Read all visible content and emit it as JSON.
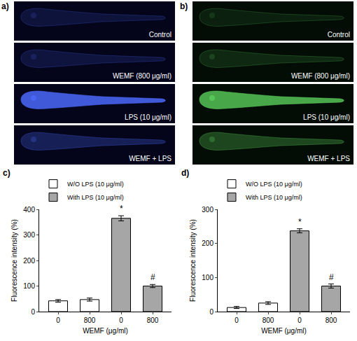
{
  "image_panels": [
    {
      "label": "a)",
      "color": "#4d6bff",
      "rows": [
        "Control",
        "WEMF (800 μg/ml)",
        "LPS (10 μg/ml)",
        "WEMF + LPS"
      ]
    },
    {
      "label": "b)",
      "color": "#62e062",
      "rows": [
        "Control",
        "WEMF (800 μg/ml)",
        "LPS (10 μg/ml)",
        "WEMF + LPS"
      ]
    }
  ],
  "chart_data": [
    {
      "type": "bar",
      "panel_label": "c)",
      "x_label": "WEMF (μg/ml)",
      "y_label": "Fluorescence intensity (%)",
      "categories": [
        "0",
        "800",
        "0",
        "800"
      ],
      "series": [
        {
          "name": "W/O LPS (10 μg/ml)",
          "color": "#ffffff",
          "values": [
            42,
            47,
            null,
            null
          ],
          "errors": [
            5,
            6,
            null,
            null
          ]
        },
        {
          "name": "With LPS (10 μg/ml)",
          "color": "#a6a6a6",
          "values": [
            null,
            null,
            365,
            100
          ],
          "errors": [
            null,
            null,
            10,
            6
          ]
        }
      ],
      "annotations": [
        {
          "text": "*",
          "index": 2
        },
        {
          "text": "#",
          "index": 3
        }
      ],
      "ylim": [
        0,
        400
      ],
      "yticks": [
        0,
        100,
        200,
        300,
        400
      ],
      "legend": "top"
    },
    {
      "type": "bar",
      "panel_label": "d)",
      "x_label": "WEMF (μg/ml)",
      "y_label": "Fluorescence intensity (%)",
      "categories": [
        "0",
        "800",
        "0",
        "800"
      ],
      "series": [
        {
          "name": "W/O LPS (10 μg/ml)",
          "color": "#ffffff",
          "values": [
            12,
            25,
            null,
            null
          ],
          "errors": [
            3,
            4,
            null,
            null
          ]
        },
        {
          "name": "With LPS (10 μg/ml)",
          "color": "#a6a6a6",
          "values": [
            null,
            null,
            237,
            75
          ],
          "errors": [
            null,
            null,
            6,
            6
          ]
        }
      ],
      "annotations": [
        {
          "text": "*",
          "index": 2
        },
        {
          "text": "#",
          "index": 3
        }
      ],
      "ylim": [
        0,
        300
      ],
      "yticks": [
        0,
        100,
        200,
        300
      ],
      "legend": "top"
    }
  ]
}
